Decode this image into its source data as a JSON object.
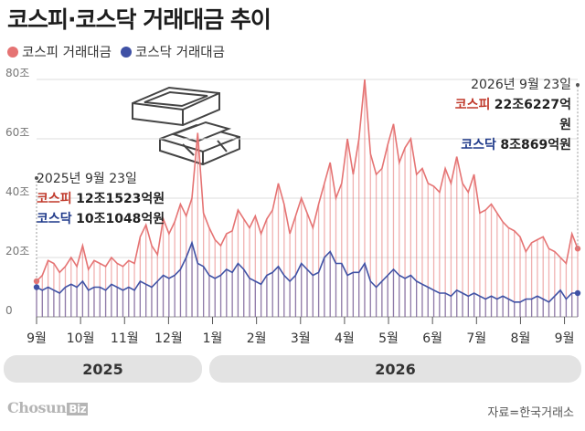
{
  "title": "코스피·코스닥 거래대금 추이",
  "legend": {
    "kospi": {
      "label": "코스피 거래대금",
      "color": "#e57373"
    },
    "kosdaq": {
      "label": "코스닥 거래대금",
      "color": "#3f51a5"
    }
  },
  "annotation_start": {
    "date": "2025년 9월 23일",
    "kospi_label": "코스피",
    "kospi_value": "12조1523억원",
    "kosdaq_label": "코스닥",
    "kosdaq_value": "10조1048억원"
  },
  "annotation_end": {
    "date": "2026년 9월 23일",
    "kospi_label": "코스피",
    "kospi_value": "22조6227억원",
    "kosdaq_label": "코스닥",
    "kosdaq_value": "8조869억원"
  },
  "years": {
    "first": "2025",
    "second": "2026"
  },
  "logo": {
    "name": "Chosun",
    "suffix": "Biz"
  },
  "source": "자료=한국거래소",
  "chart_data": {
    "type": "bar",
    "ylim": [
      0,
      80
    ],
    "y_ticks": [
      "0",
      "20조",
      "40조",
      "60조",
      "80조"
    ],
    "x_ticks": [
      "9월",
      "10월",
      "11월",
      "12월",
      "1월",
      "2월",
      "3월",
      "4월",
      "5월",
      "6월",
      "7월",
      "8월",
      "9월"
    ],
    "grid": true,
    "series": [
      {
        "name": "코스피 거래대금",
        "color": "#e57373",
        "values": [
          12,
          14,
          19,
          18,
          15,
          17,
          20,
          17,
          24,
          16,
          19,
          18,
          17,
          20,
          18,
          17,
          19,
          18,
          27,
          31,
          24,
          21,
          33,
          28,
          32,
          38,
          34,
          40,
          62,
          35,
          30,
          26,
          24,
          28,
          29,
          36,
          33,
          30,
          34,
          28,
          33,
          36,
          45,
          38,
          28,
          34,
          40,
          35,
          30,
          38,
          45,
          52,
          40,
          45,
          60,
          48,
          60,
          80,
          55,
          48,
          50,
          58,
          65,
          52,
          57,
          60,
          48,
          50,
          45,
          44,
          42,
          50,
          45,
          54,
          45,
          42,
          48,
          35,
          36,
          38,
          35,
          32,
          30,
          29,
          27,
          22,
          25,
          26,
          27,
          23,
          22,
          20,
          18,
          28,
          23
        ]
      },
      {
        "name": "코스닥 거래대금",
        "color": "#3f51a5",
        "values": [
          10,
          9,
          10,
          9,
          8,
          10,
          11,
          10,
          12,
          9,
          10,
          10,
          9,
          11,
          10,
          9,
          10,
          9,
          12,
          11,
          10,
          12,
          14,
          13,
          14,
          16,
          20,
          25,
          18,
          17,
          14,
          13,
          14,
          16,
          15,
          18,
          16,
          13,
          12,
          11,
          14,
          15,
          17,
          14,
          12,
          14,
          18,
          16,
          14,
          15,
          20,
          22,
          18,
          18,
          14,
          15,
          15,
          18,
          12,
          10,
          12,
          14,
          16,
          14,
          13,
          14,
          12,
          11,
          10,
          9,
          8,
          8,
          7,
          9,
          8,
          7,
          8,
          7,
          6,
          7,
          6,
          7,
          6,
          5,
          5,
          6,
          6,
          7,
          6,
          5,
          7,
          9,
          6,
          8,
          8
        ]
      }
    ]
  }
}
